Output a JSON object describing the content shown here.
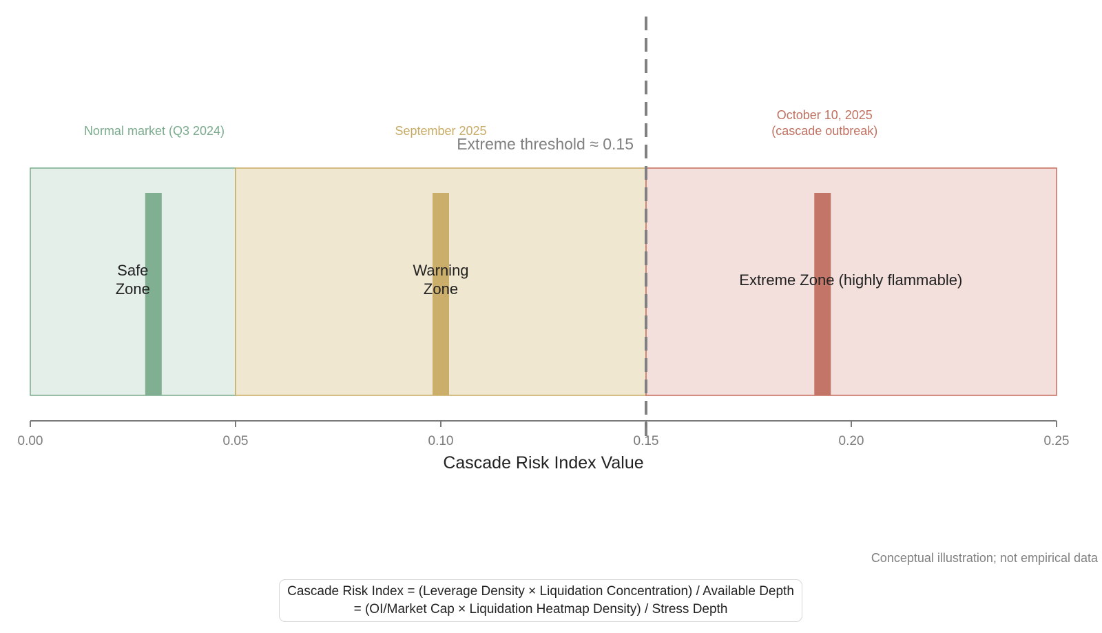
{
  "chart_data": {
    "type": "bar",
    "xlabel": "Cascade Risk Index Value",
    "ylabel": "",
    "title": "",
    "xlim": [
      0.0,
      0.25
    ],
    "x_ticks": [
      0.0,
      0.05,
      0.1,
      0.15,
      0.2,
      0.25
    ],
    "x_tick_labels": [
      "0.00",
      "0.05",
      "0.10",
      "0.15",
      "0.20",
      "0.25"
    ],
    "grid": false,
    "zones": [
      {
        "name": "Safe\nZone",
        "from": 0.0,
        "to": 0.05,
        "fill": "#e3efe8",
        "edge": "#7aab8c"
      },
      {
        "name": "Warning\nZone",
        "from": 0.05,
        "to": 0.15,
        "fill": "#f0e7d0",
        "edge": "#c8ab64"
      },
      {
        "name": "Extreme Zone (highly flammable)",
        "from": 0.15,
        "to": 0.25,
        "fill": "#f3e0dc",
        "edge": "#c86a5c"
      }
    ],
    "markers": [
      {
        "x": 0.03,
        "label": "Normal market (Q3 2024)",
        "color": "#7aab8c"
      },
      {
        "x": 0.1,
        "label": "September 2025",
        "color": "#c8ab64"
      },
      {
        "x": 0.193,
        "label": "October 10, 2025\n(cascade outbreak)",
        "color": "#c07060"
      }
    ],
    "threshold": {
      "x": 0.15,
      "label": "Extreme threshold ≈ 0.15",
      "color": "#808080"
    }
  },
  "footnote": "Conceptual illustration; not empirical data",
  "formula": {
    "line1": "Cascade Risk Index = (Leverage Density × Liquidation Concentration) / Available Depth",
    "line2": "= (OI/Market Cap × Liquidation Heatmap Density) / Stress Depth"
  }
}
